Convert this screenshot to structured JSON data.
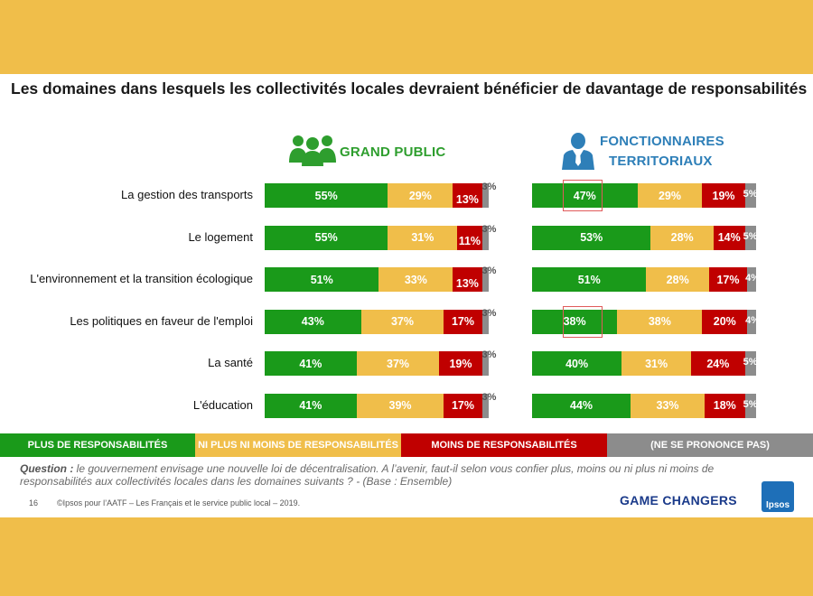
{
  "title": "Les domaines dans lesquels les collectivités locales devraient bénéficier de davantage de responsabilités",
  "groups": {
    "grand_public": {
      "label": "GRAND PUBLIC",
      "icon": "people-group-icon",
      "color": "#2e9e2e"
    },
    "fonctionnaires": {
      "label_line1": "FONCTIONNAIRES",
      "label_line2": "TERRITORIAUX",
      "icon": "official-person-icon",
      "color": "#2e7fb8"
    }
  },
  "colors": {
    "plus": "#1a9a1a",
    "ni": "#f0be4a",
    "moins": "#c00000",
    "nsp": "#8c8c8c"
  },
  "chart_data": {
    "type": "bar",
    "stacked": true,
    "orientation": "horizontal",
    "categories": [
      "La gestion des transports",
      "Le logement",
      "L'environnement et la transition écologique",
      "Les politiques en faveur de l'emploi",
      "La santé",
      "L'éducation"
    ],
    "panels": [
      {
        "name": "GRAND PUBLIC",
        "series": [
          {
            "name": "PLUS DE RESPONSABILITÉS",
            "values": [
              55,
              55,
              51,
              43,
              41,
              41
            ]
          },
          {
            "name": "NI PLUS NI MOINS DE RESPONSABILITÉS",
            "values": [
              29,
              31,
              33,
              37,
              37,
              39
            ]
          },
          {
            "name": "MOINS DE RESPONSABILITÉS",
            "values": [
              13,
              11,
              13,
              17,
              19,
              17
            ]
          },
          {
            "name": "(NE SE PRONONCE PAS)",
            "values": [
              3,
              3,
              3,
              3,
              3,
              3
            ]
          }
        ]
      },
      {
        "name": "FONCTIONNAIRES TERRITORIAUX",
        "series": [
          {
            "name": "PLUS DE RESPONSABILITÉS",
            "values": [
              47,
              53,
              51,
              38,
              40,
              44
            ]
          },
          {
            "name": "NI PLUS NI MOINS DE RESPONSABILITÉS",
            "values": [
              29,
              28,
              28,
              38,
              31,
              33
            ]
          },
          {
            "name": "MOINS DE RESPONSABILITÉS",
            "values": [
              19,
              14,
              17,
              20,
              24,
              18
            ]
          },
          {
            "name": "(NE SE PRONONCE PAS)",
            "values": [
              5,
              5,
              4,
              4,
              5,
              5
            ]
          }
        ],
        "highlighted": [
          0,
          3
        ]
      }
    ],
    "unit": "%"
  },
  "legend": [
    {
      "label": "PLUS DE RESPONSABILITÉS",
      "color": "#1a9a1a"
    },
    {
      "label": "NI PLUS NI MOINS DE RESPONSABILITÉS",
      "color": "#f0be4a"
    },
    {
      "label": "MOINS DE RESPONSABILITÉS",
      "color": "#c00000"
    },
    {
      "label": "(NE SE PRONONCE PAS)",
      "color": "#8c8c8c"
    }
  ],
  "question": {
    "prefix": "Question :",
    "text": " le gouvernement envisage une nouvelle loi de décentralisation. A l’avenir, faut-il selon vous confier plus, moins ou ni plus ni moins de responsabilités aux collectivités locales dans les domaines suivants ?  - (Base : Ensemble)"
  },
  "footer": {
    "page": "16",
    "source": "©Ipsos pour l’AATF – Les Français et le service public local – 2019.",
    "tagline": "GAME CHANGERS",
    "logo_text": "Ipsos"
  }
}
